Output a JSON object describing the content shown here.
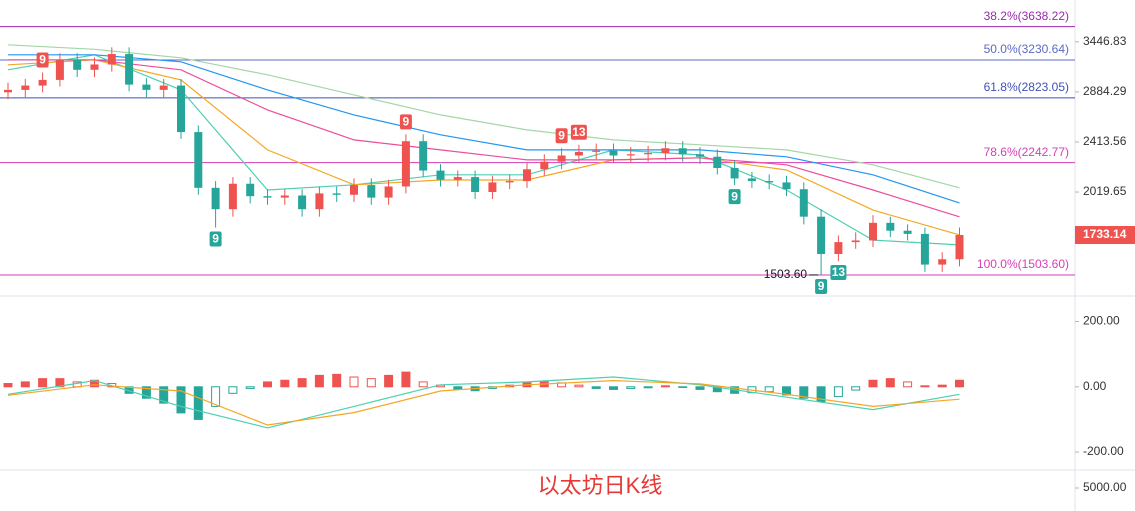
{
  "chart_data": [
    {
      "type": "candlestick",
      "scale": "log",
      "ylim": [
        1400,
        4000
      ],
      "yticks": [
        3446.83,
        2884.29,
        2413.56,
        2019.65
      ],
      "up_color": "#ef5350",
      "down_color": "#26a69a",
      "open": [
        2880,
        2905,
        2950,
        3010,
        3233,
        3120,
        3180,
        3300,
        2960,
        2905,
        2950,
        2500,
        2050,
        1900,
        2080,
        1990,
        1980,
        1995,
        1900,
        2010,
        2000,
        2070,
        1980,
        2060,
        2420,
        2180,
        2110,
        2130,
        2020,
        2090,
        2100,
        2190,
        2250,
        2300,
        2330,
        2340,
        2300,
        2310,
        2320,
        2360,
        2310,
        2290,
        2200,
        2120,
        2100,
        2090,
        2040,
        1850,
        1620,
        1690,
        1700,
        1810,
        1760,
        1740,
        1560,
        1590
      ],
      "high": [
        2980,
        3020,
        3090,
        3310,
        3310,
        3260,
        3380,
        3380,
        3030,
        3020,
        3020,
        2560,
        2100,
        2130,
        2130,
        2040,
        2040,
        2040,
        2060,
        2060,
        2120,
        2120,
        2110,
        2480,
        2480,
        2230,
        2180,
        2180,
        2140,
        2150,
        2240,
        2310,
        2360,
        2390,
        2400,
        2400,
        2370,
        2380,
        2420,
        2420,
        2370,
        2350,
        2260,
        2170,
        2150,
        2140,
        2090,
        1900,
        1730,
        1750,
        1860,
        1850,
        1800,
        1780,
        1630,
        1780
      ],
      "low": [
        2810,
        2830,
        2880,
        2940,
        3040,
        3040,
        3100,
        2890,
        2830,
        2830,
        2440,
        2000,
        1780,
        1850,
        1940,
        1930,
        1930,
        1850,
        1850,
        1950,
        1950,
        1930,
        1930,
        2010,
        2130,
        2060,
        2060,
        1970,
        1970,
        2040,
        2050,
        2140,
        2190,
        2240,
        2270,
        2240,
        2240,
        2250,
        2260,
        2250,
        2230,
        2150,
        2070,
        2050,
        2040,
        1990,
        1800,
        1503.6,
        1580,
        1650,
        1660,
        1720,
        1700,
        1520,
        1520,
        1550
      ],
      "close": [
        2905,
        2950,
        3010,
        3233,
        3120,
        3180,
        3300,
        2960,
        2905,
        2950,
        2500,
        2050,
        1900,
        2080,
        1990,
        1980,
        1995,
        1900,
        2010,
        2000,
        2070,
        1980,
        2060,
        2420,
        2180,
        2110,
        2130,
        2020,
        2090,
        2100,
        2190,
        2250,
        2300,
        2330,
        2340,
        2300,
        2310,
        2320,
        2360,
        2310,
        2290,
        2200,
        2120,
        2100,
        2090,
        2040,
        1850,
        1620,
        1690,
        1700,
        1810,
        1760,
        1740,
        1560,
        1590,
        1733.14
      ],
      "ma_x": [
        0,
        5,
        10,
        15,
        20,
        25,
        30,
        35,
        40,
        45,
        50,
        55
      ],
      "ma_series": [
        {
          "color": "#4dd0b1",
          "values": [
            3120,
            3291,
            2905,
            2034,
            2072,
            2147,
            2147,
            2346,
            2305,
            2034,
            1702,
            1673
          ]
        },
        {
          "color": "#f5a623",
          "values": [
            3176,
            3233,
            3010,
            2346,
            2072,
            2108,
            2108,
            2264,
            2281,
            2184,
            1894,
            1734
          ]
        },
        {
          "color": "#ec4d9c",
          "values": [
            3233,
            3233,
            3120,
            2705,
            2431,
            2346,
            2264,
            2264,
            2281,
            2225,
            2034,
            1849
          ]
        },
        {
          "color": "#2196f3",
          "values": [
            3291,
            3291,
            3210,
            2905,
            2658,
            2476,
            2346,
            2346,
            2346,
            2289,
            2147,
            1943
          ]
        },
        {
          "color": "#a5d6a7",
          "values": [
            3410,
            3356,
            3256,
            3065,
            2854,
            2658,
            2519,
            2431,
            2389,
            2346,
            2225,
            2050
          ]
        }
      ],
      "fib_levels": [
        {
          "value": 3638.22,
          "label": "38.2%(3638.22)",
          "color": "#9c27b0"
        },
        {
          "value": 3230.64,
          "label": "50.0%(3230.64)",
          "color": "#5c6bc0"
        },
        {
          "value": 2823.05,
          "label": "61.8%(2823.05)",
          "color": "#3f51b5"
        },
        {
          "value": 2242.77,
          "label": "78.6%(2242.77)",
          "color": "#d63fb6"
        },
        {
          "value": 1503.6,
          "label": "100.0%(1503.60)",
          "color": "#d63fb6"
        }
      ],
      "low_annotation": {
        "value": 1503.6,
        "label": "1503.60"
      },
      "td_markers": [
        {
          "label": "9",
          "color": "#ef5350"
        },
        {
          "label": "9",
          "color": "#ef5350"
        },
        {
          "label": "9",
          "color": "#ef5350"
        },
        {
          "label": "13",
          "color": "#ef5350"
        },
        {
          "label": "9",
          "color": "#26a69a"
        },
        {
          "label": "9",
          "color": "#26a69a"
        },
        {
          "label": "9",
          "color": "#26a69a"
        },
        {
          "label": "13",
          "color": "#26a69a"
        }
      ]
    },
    {
      "type": "macd",
      "ylim": [
        -255,
        266
      ],
      "yticks": [
        {
          "value": 200,
          "label": "200.00"
        },
        {
          "value": 0,
          "label": "0.00"
        },
        {
          "value": -200,
          "label": "-200.00"
        }
      ],
      "pos_color": "#ef5350",
      "neg_color": "#26a69a",
      "histogram": [
        10,
        15,
        25,
        25,
        15,
        20,
        10,
        -20,
        -35,
        -50,
        -80,
        -100,
        -60,
        -20,
        -5,
        15,
        20,
        25,
        35,
        38,
        30,
        25,
        35,
        45,
        15,
        5,
        -8,
        -12,
        -5,
        5,
        12,
        15,
        12,
        5,
        -5,
        -8,
        -5,
        -3,
        3,
        -2,
        -8,
        -15,
        -20,
        -18,
        -15,
        -25,
        -35,
        -45,
        -30,
        -10,
        20,
        25,
        15,
        3,
        5,
        20
      ],
      "line_x": [
        0,
        5,
        10,
        15,
        20,
        25,
        30,
        35,
        40,
        45,
        50,
        55
      ],
      "lines": [
        {
          "color": "#4dd0b1",
          "values": [
            -23,
            19,
            -60,
            -126,
            -60,
            6,
            15,
            30,
            6,
            -32,
            -70,
            -23
          ]
        },
        {
          "color": "#f5a623",
          "values": [
            -26,
            6,
            -13,
            -117,
            -79,
            -13,
            6,
            19,
            9,
            -23,
            -60,
            -38
          ]
        }
      ]
    }
  ],
  "volume_axis": {
    "yticks": [
      {
        "value": 5000,
        "label": "5000.00"
      }
    ]
  },
  "watermark": "以太坊日K线"
}
